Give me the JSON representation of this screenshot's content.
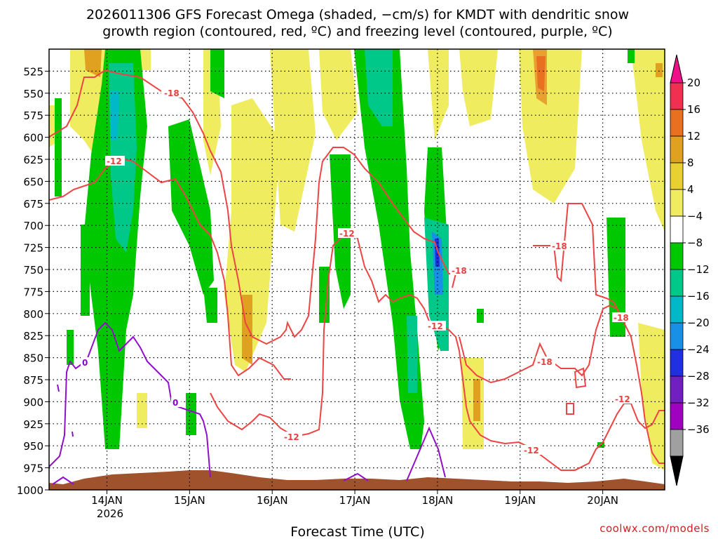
{
  "chart_data": {
    "type": "heatmap",
    "title_line1": "2026011306 GFS Forecast Omega (shaded, −cm/s) for KMDT with dendritic snow",
    "title_line2": "growth region (contoured, red, ºC) and freezing level (contoured, purple, ºC)",
    "xlabel": "Forecast Time (UTC)",
    "x_ticks": [
      "14JAN",
      "15JAN",
      "16JAN",
      "17JAN",
      "18JAN",
      "19JAN",
      "20JAN"
    ],
    "x_year_label": "2026",
    "y_ticks": [
      525,
      550,
      575,
      600,
      625,
      650,
      675,
      700,
      725,
      750,
      775,
      800,
      825,
      850,
      875,
      900,
      925,
      950,
      975,
      1000
    ],
    "y_range_hpa": [
      500,
      1000
    ],
    "x_range_days": [
      13.3,
      20.75
    ],
    "colorbar": {
      "labels": [
        "20",
        "16",
        "12",
        "8",
        "4",
        "−4",
        "−8",
        "−12",
        "−16",
        "−20",
        "−24",
        "−28",
        "−32",
        "−36"
      ],
      "colors": [
        "#f03050",
        "#e87020",
        "#e0a020",
        "#e8d030",
        "#f0ec60",
        "#ffffff",
        "#00c800",
        "#00c888",
        "#00b8c8",
        "#1890e8",
        "#2030e0",
        "#7020c0",
        "#a000c0",
        "#a0a0a0"
      ],
      "top_arrow_color": "#ee1088",
      "bottom_arrow_color": "#000000"
    },
    "contours": {
      "red_labels": [
        "-18",
        "-12",
        "-12",
        "-18",
        "-12",
        "-18",
        "-18",
        "-18",
        "-12",
        "-12",
        "-12"
      ],
      "red_color": "#ee4444",
      "purple_labels": [
        "0",
        "0"
      ],
      "purple_color": "#9010c8"
    },
    "credit": "coolwx.com/models"
  }
}
